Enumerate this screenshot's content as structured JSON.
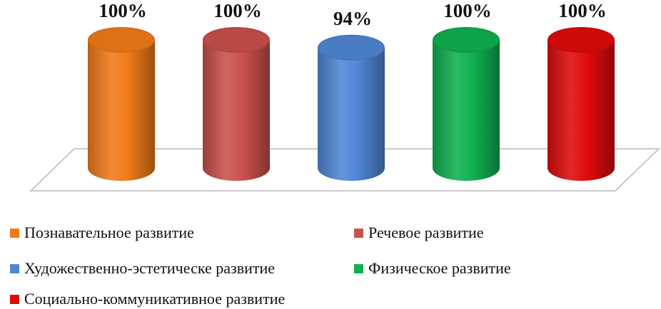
{
  "chart_data": {
    "type": "bar",
    "style": "3d-cylinder",
    "categories": [
      "Познавательное развитие",
      "Речевое развитие",
      "Художественно-эстетическе развитие",
      "Физическое развитие",
      "Социально-коммуникативное развитие"
    ],
    "values": [
      100,
      100,
      94,
      100,
      100
    ],
    "data_labels": [
      "100%",
      "100%",
      "94%",
      "100%",
      "100%"
    ],
    "colors": [
      "#f07a1a",
      "#c9504c",
      "#4f86d6",
      "#10b050",
      "#df0b0b"
    ],
    "ylim": [
      0,
      100
    ],
    "grid": false,
    "legend_position": "bottom"
  }
}
